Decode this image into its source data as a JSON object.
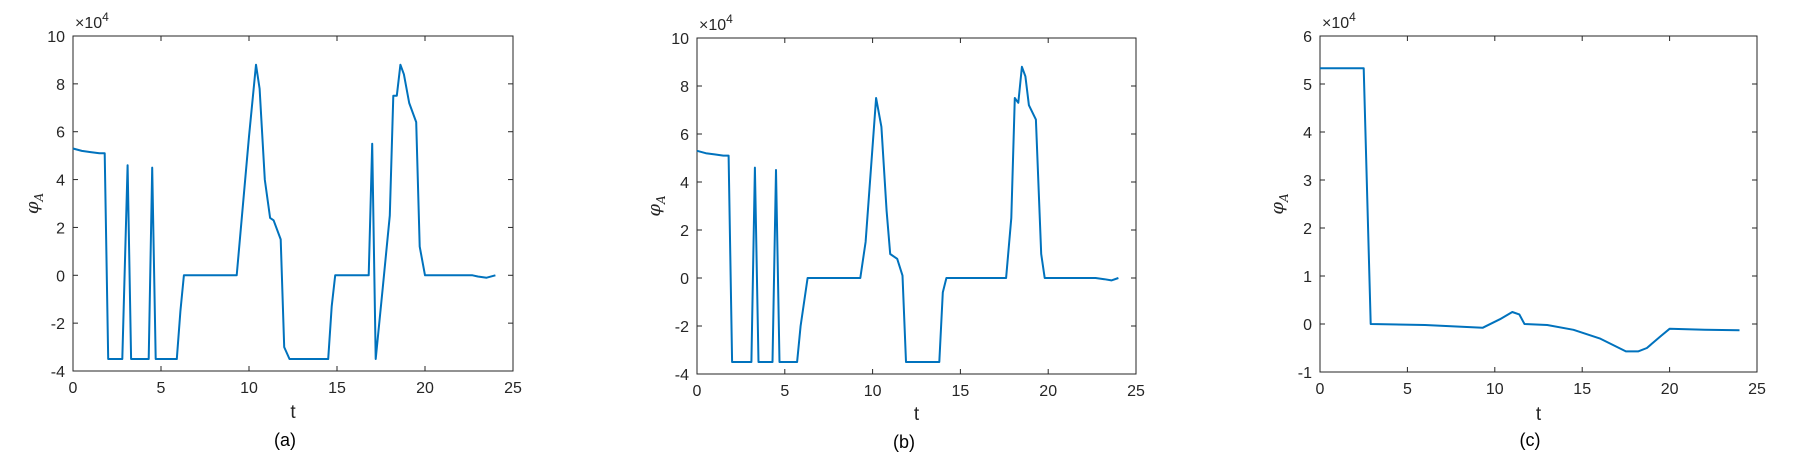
{
  "chart_data": [
    {
      "type": "line",
      "caption": "(a)",
      "xlabel": "t",
      "ylabel": "φ",
      "ylabel_sub": "A",
      "y_exponent_base": "×10",
      "y_exponent": "4",
      "xlim": [
        0,
        25
      ],
      "ylim": [
        -4,
        10
      ],
      "xticks": [
        0,
        5,
        10,
        15,
        20,
        25
      ],
      "yticks": [
        -4,
        -2,
        0,
        2,
        4,
        6,
        8,
        10
      ],
      "grid": false,
      "color": "#0072BD",
      "series": [
        {
          "x": [
            0,
            0.5,
            1.0,
            1.5,
            1.8,
            2.0,
            2.3,
            2.8,
            3.1,
            3.3,
            3.5,
            4.3,
            4.5,
            4.7,
            5.9,
            6.1,
            6.3,
            9.3,
            10.0,
            10.4,
            10.6,
            10.9,
            11.2,
            11.4,
            11.8,
            12.0,
            12.3,
            14.5,
            14.7,
            14.9,
            16.8,
            17.0,
            17.2,
            17.6,
            18.0,
            18.2,
            18.4,
            18.6,
            18.8,
            19.1,
            19.5,
            19.7,
            20.0,
            22.7,
            23.0,
            23.5,
            24.0
          ],
          "y": [
            5.3,
            5.2,
            5.15,
            5.1,
            5.1,
            -3.5,
            -3.5,
            -3.5,
            4.6,
            -3.5,
            -3.5,
            -3.5,
            4.5,
            -3.5,
            -3.5,
            -1.5,
            0.0,
            0.0,
            5.8,
            8.8,
            7.8,
            4.0,
            2.4,
            2.3,
            1.5,
            -3.0,
            -3.5,
            -3.5,
            -1.3,
            0.0,
            0.0,
            5.5,
            -3.5,
            -0.5,
            2.5,
            7.5,
            7.5,
            8.8,
            8.4,
            7.2,
            6.4,
            1.2,
            0.0,
            0.0,
            -0.05,
            -0.1,
            0.0
          ]
        }
      ]
    },
    {
      "type": "line",
      "caption": "(b)",
      "xlabel": "t",
      "ylabel": "φ",
      "ylabel_sub": "A",
      "y_exponent_base": "×10",
      "y_exponent": "4",
      "xlim": [
        0,
        25
      ],
      "ylim": [
        -4,
        10
      ],
      "xticks": [
        0,
        5,
        10,
        15,
        20,
        25
      ],
      "yticks": [
        -4,
        -2,
        0,
        2,
        4,
        6,
        8,
        10
      ],
      "grid": false,
      "color": "#0072BD",
      "series": [
        {
          "x": [
            0,
            0.5,
            1.0,
            1.5,
            1.8,
            2.0,
            2.3,
            3.1,
            3.3,
            3.5,
            4.3,
            4.5,
            4.7,
            5.7,
            5.9,
            6.1,
            6.3,
            9.3,
            9.6,
            9.8,
            10.2,
            10.5,
            10.8,
            11.0,
            11.4,
            11.7,
            11.9,
            12.1,
            13.8,
            14.0,
            14.2,
            17.6,
            17.9,
            18.1,
            18.3,
            18.5,
            18.7,
            18.9,
            19.3,
            19.6,
            19.8,
            20.1,
            22.7,
            23.2,
            23.6,
            24.0
          ],
          "y": [
            5.3,
            5.2,
            5.15,
            5.1,
            5.1,
            -3.5,
            -3.5,
            -3.5,
            4.6,
            -3.5,
            -3.5,
            4.5,
            -3.5,
            -3.5,
            -2.0,
            -1.0,
            0.0,
            0.0,
            1.5,
            3.5,
            7.5,
            6.3,
            2.8,
            1.0,
            0.8,
            0.1,
            -3.5,
            -3.5,
            -3.5,
            -0.6,
            0.0,
            0.0,
            2.5,
            7.5,
            7.3,
            8.8,
            8.4,
            7.2,
            6.6,
            1.0,
            0.0,
            0.0,
            0.0,
            -0.05,
            -0.1,
            0.0
          ]
        }
      ]
    },
    {
      "type": "line",
      "caption": "(c)",
      "xlabel": "t",
      "ylabel": "φ",
      "ylabel_sub": "A",
      "y_exponent_base": "×10",
      "y_exponent": "4",
      "xlim": [
        0,
        25
      ],
      "ylim": [
        -1,
        6
      ],
      "xticks": [
        0,
        5,
        10,
        15,
        20,
        25
      ],
      "yticks": [
        -1,
        0,
        1,
        2,
        3,
        4,
        5,
        6
      ],
      "grid": false,
      "color": "#0072BD",
      "series": [
        {
          "x": [
            0,
            2.5,
            2.9,
            6.0,
            9.3,
            10.3,
            11.0,
            11.4,
            11.7,
            13.0,
            14.5,
            16.0,
            17.5,
            18.2,
            18.7,
            19.5,
            20.0,
            22.0,
            24.0
          ],
          "y": [
            5.33,
            5.33,
            0.0,
            -0.02,
            -0.08,
            0.1,
            0.25,
            0.2,
            0.0,
            -0.02,
            -0.12,
            -0.3,
            -0.57,
            -0.57,
            -0.5,
            -0.25,
            -0.1,
            -0.12,
            -0.13
          ]
        }
      ]
    }
  ]
}
